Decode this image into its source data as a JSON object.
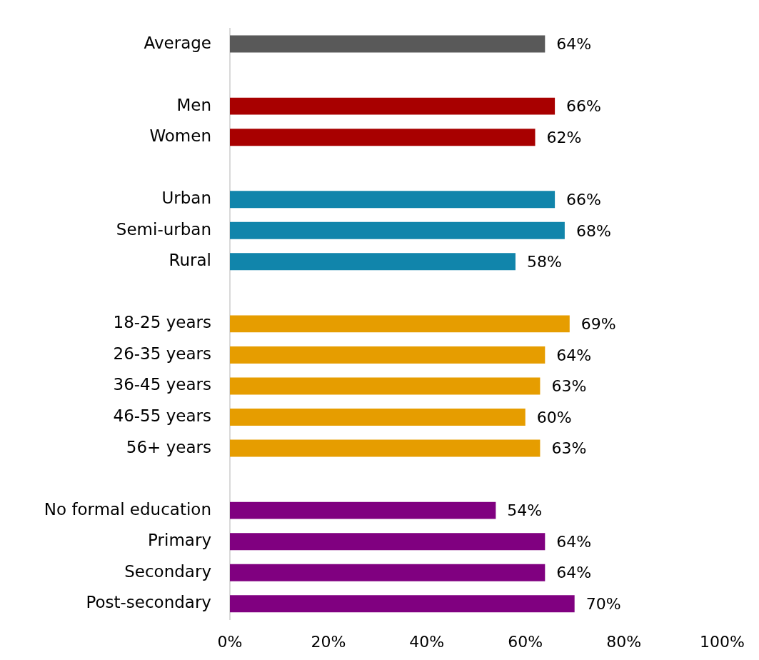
{
  "chart_data": {
    "type": "bar",
    "orientation": "horizontal",
    "categories": [
      "Average",
      null,
      "Men",
      "Women",
      null,
      "Urban",
      "Semi-urban",
      "Rural",
      null,
      "18-25 years",
      "26-35 years",
      "36-45 years",
      "46-55 years",
      "56+ years",
      null,
      "No formal education",
      "Primary",
      "Secondary",
      "Post-secondary"
    ],
    "values": [
      64,
      null,
      66,
      62,
      null,
      66,
      68,
      58,
      null,
      69,
      64,
      63,
      60,
      63,
      null,
      54,
      64,
      64,
      70
    ],
    "colors": [
      "#595959",
      null,
      "#a80000",
      "#a80000",
      null,
      "#1185ab",
      "#1185ab",
      "#1185ab",
      null,
      "#e69d00",
      "#e69d00",
      "#e69d00",
      "#e69d00",
      "#e69d00",
      null,
      "#800080",
      "#800080",
      "#800080",
      "#800080"
    ],
    "value_labels": [
      "64%",
      null,
      "66%",
      "62%",
      null,
      "66%",
      "68%",
      "58%",
      null,
      "69%",
      "64%",
      "63%",
      "60%",
      "63%",
      null,
      "54%",
      "64%",
      "64%",
      "70%"
    ],
    "xlim": [
      0,
      100
    ],
    "xticks": [
      {
        "value": 0,
        "label": "0%"
      },
      {
        "value": 20,
        "label": "20%"
      },
      {
        "value": 40,
        "label": "40%"
      },
      {
        "value": 60,
        "label": "60%"
      },
      {
        "value": 80,
        "label": "80%"
      },
      {
        "value": 100,
        "label": "100%"
      }
    ]
  }
}
